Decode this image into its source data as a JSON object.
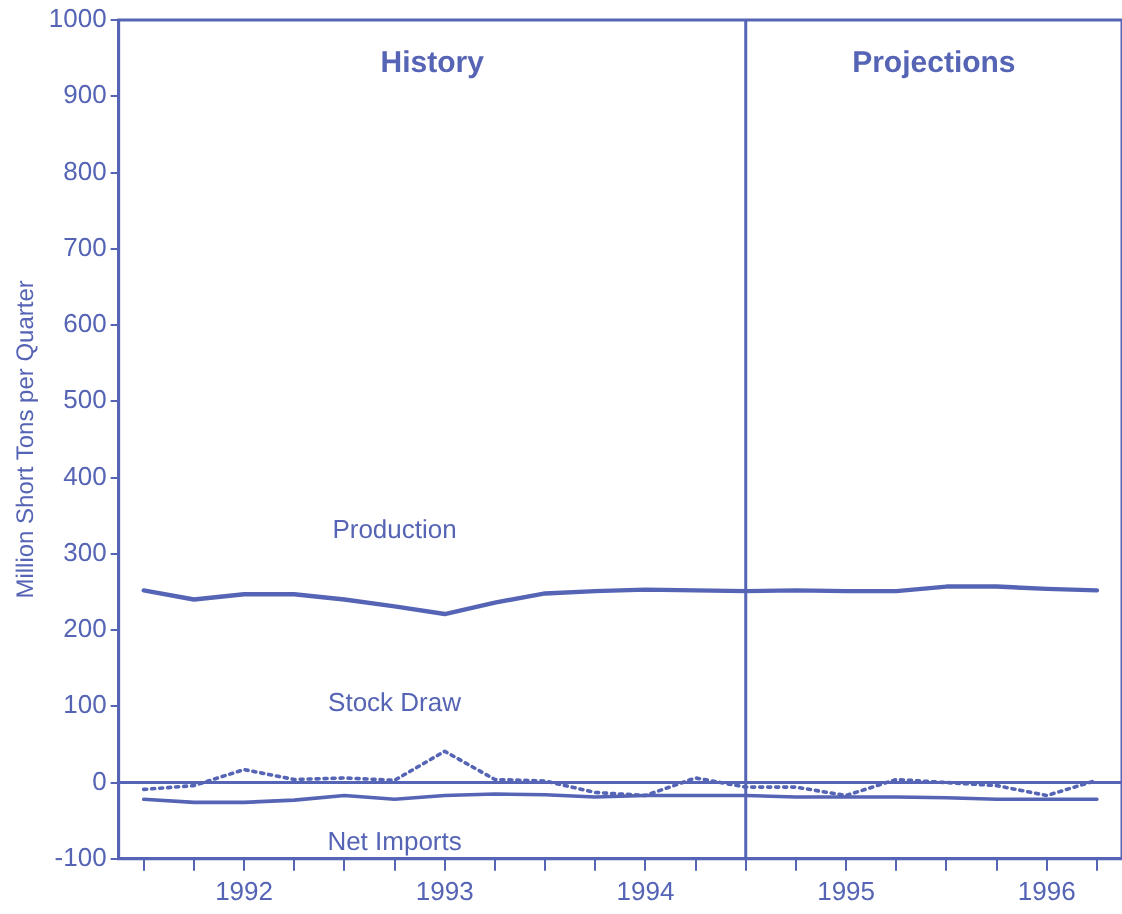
{
  "chart_data": {
    "type": "line",
    "ylabel": "Million Short Tons per Quarter",
    "x": [
      1992,
      1992.25,
      1992.5,
      1992.75,
      1993,
      1993.25,
      1993.5,
      1993.75,
      1994,
      1994.25,
      1994.5,
      1994.75,
      1995,
      1995.25,
      1995.5,
      1995.75,
      1996,
      1996.25,
      1996.5,
      1996.75
    ],
    "series": [
      {
        "name": "Production",
        "color": "#5564b4",
        "values": [
          252,
          240,
          247,
          247,
          240,
          231,
          221,
          236,
          248,
          251,
          253,
          252,
          251,
          252,
          251,
          251,
          257,
          257,
          254,
          252
        ]
      },
      {
        "name": "Stock Draw",
        "color": "#5564b4",
        "line_style": "dotted",
        "values": [
          -9,
          -4,
          17,
          4,
          6,
          3,
          41,
          4,
          2,
          -13,
          -17,
          6,
          -6,
          -6,
          -17,
          4,
          0,
          -4,
          -17,
          3
        ]
      },
      {
        "name": "Net Imports",
        "color": "#5564b4",
        "values": [
          -22,
          -26,
          -26,
          -23,
          -17,
          -22,
          -17,
          -15,
          -16,
          -19,
          -17,
          -17,
          -17,
          -19,
          -19,
          -19,
          -20,
          -22,
          -22,
          -22
        ]
      }
    ],
    "xlim": [
      1991.875,
      1996.875
    ],
    "xticks": [
      {
        "value": 1992,
        "label": null
      },
      {
        "value": 1992.25,
        "label": null
      },
      {
        "value": 1992.5,
        "label": "1992"
      },
      {
        "value": 1992.75,
        "label": null
      },
      {
        "value": 1993,
        "label": null
      },
      {
        "value": 1993.25,
        "label": null
      },
      {
        "value": 1993.5,
        "label": "1993"
      },
      {
        "value": 1993.75,
        "label": null
      },
      {
        "value": 1994,
        "label": null
      },
      {
        "value": 1994.25,
        "label": null
      },
      {
        "value": 1994.5,
        "label": "1994"
      },
      {
        "value": 1994.75,
        "label": null
      },
      {
        "value": 1995,
        "label": null
      },
      {
        "value": 1995.25,
        "label": null
      },
      {
        "value": 1995.5,
        "label": "1995"
      },
      {
        "value": 1995.75,
        "label": null
      },
      {
        "value": 1996,
        "label": null
      },
      {
        "value": 1996.25,
        "label": null
      },
      {
        "value": 1996.5,
        "label": "1996"
      },
      {
        "value": 1996.75,
        "label": null
      }
    ],
    "ylim": [
      -100,
      1000
    ],
    "yticks": [
      -100,
      0,
      100,
      200,
      300,
      400,
      500,
      600,
      700,
      800,
      900,
      1000
    ],
    "ref_lines": [
      {
        "axis": "y",
        "value": 0,
        "color": "#5564b4"
      },
      {
        "axis": "x",
        "value": 1995,
        "color": "#5564b4"
      }
    ],
    "annotations": [
      "History",
      "Projections"
    ],
    "grid": false,
    "legend": false,
    "marker": "none"
  }
}
